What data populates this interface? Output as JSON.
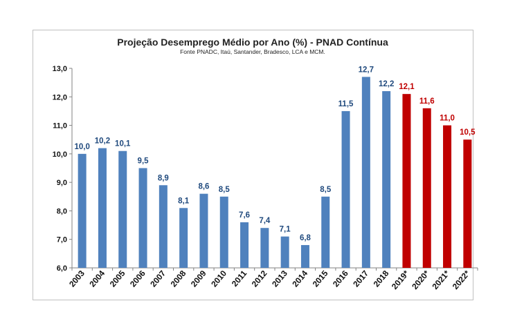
{
  "chart_data": {
    "type": "bar",
    "title": "Projeção Desemprego Médio por Ano (%) - PNAD Contínua",
    "subtitle": "Fonte PNADC,  Itaú, Santander,  Bradesco,  LCA e MCM.",
    "xlabel": "",
    "ylabel": "",
    "ylim": [
      6.0,
      13.0
    ],
    "yticks": [
      "6,0",
      "7,0",
      "8,0",
      "9,0",
      "10,0",
      "11,0",
      "12,0",
      "13,0"
    ],
    "categories": [
      "2003",
      "2004",
      "2005",
      "2006",
      "2007",
      "2008",
      "2009",
      "2010",
      "2011",
      "2012",
      "2013",
      "2014",
      "2015",
      "2016",
      "2017",
      "2018",
      "2019*",
      "2020*",
      "2021*",
      "2022*"
    ],
    "values": [
      10.0,
      10.2,
      10.1,
      9.5,
      8.9,
      8.1,
      8.6,
      8.5,
      7.6,
      7.4,
      7.1,
      6.8,
      8.5,
      11.5,
      12.7,
      12.2,
      12.1,
      11.6,
      11.0,
      10.5
    ],
    "labels": [
      "10,0",
      "10,2",
      "10,1",
      "9,5",
      "8,9",
      "8,1",
      "8,6",
      "8,5",
      "7,6",
      "7,4",
      "7,1",
      "6,8",
      "8,5",
      "11,5",
      "12,7",
      "12,2",
      "12,1",
      "11,6",
      "11,0",
      "10,5"
    ],
    "series_kind": [
      "actual",
      "actual",
      "actual",
      "actual",
      "actual",
      "actual",
      "actual",
      "actual",
      "actual",
      "actual",
      "actual",
      "actual",
      "actual",
      "actual",
      "actual",
      "actual",
      "projection",
      "projection",
      "projection",
      "projection"
    ],
    "colors": {
      "actual": "#4f81bd",
      "projection": "#c00000",
      "actual_label": "#1f497d",
      "projection_label": "#c00000"
    }
  }
}
